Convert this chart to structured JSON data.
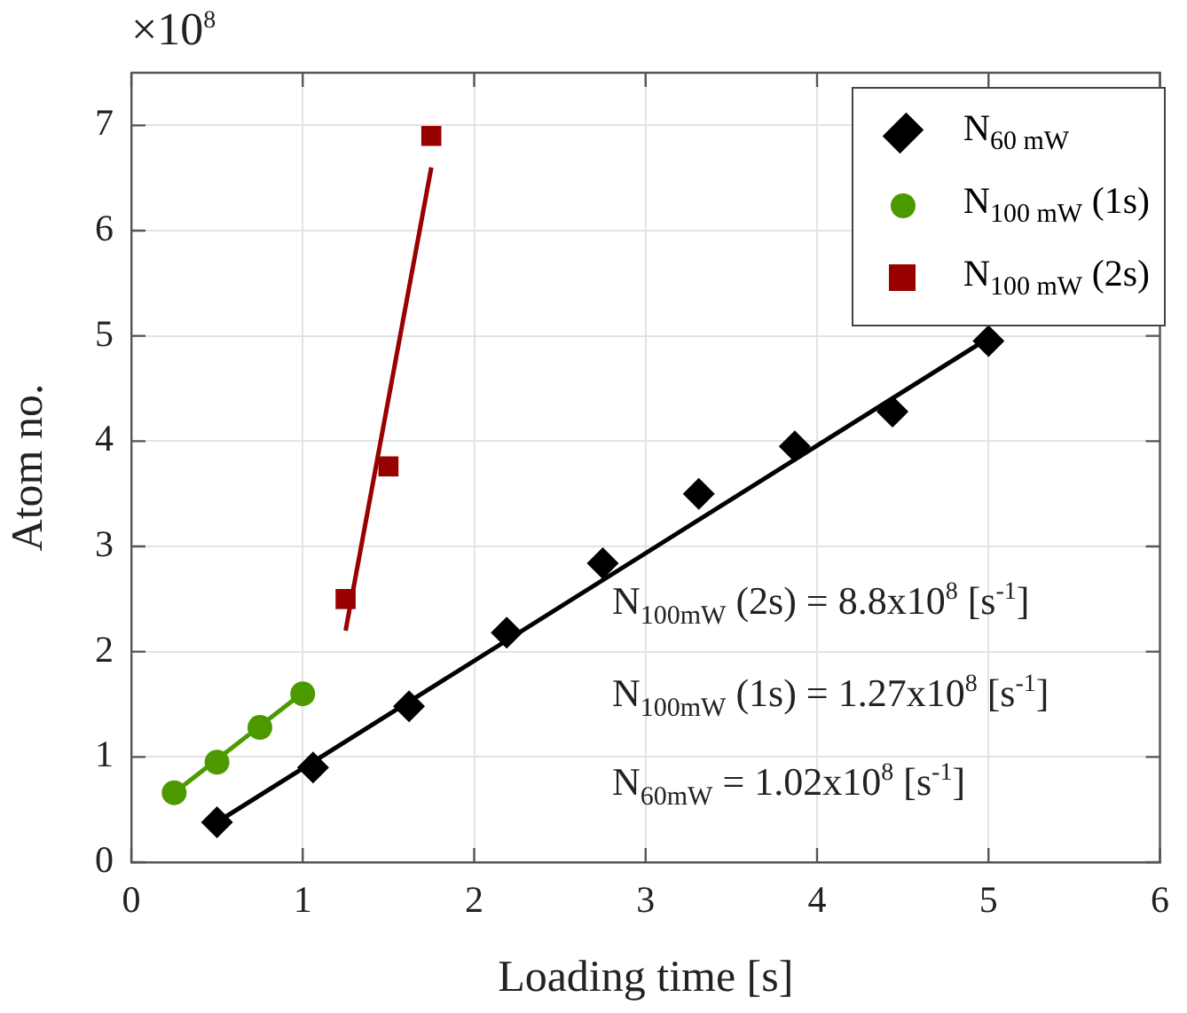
{
  "chart_data": {
    "type": "scatter",
    "xlabel": "Loading time [s]",
    "ylabel": "Atom no.",
    "xlim": [
      0,
      6
    ],
    "xticks": [
      0,
      1,
      2,
      3,
      4,
      5,
      6
    ],
    "ylim": [
      0,
      7.5
    ],
    "yticks": [
      0,
      1,
      2,
      3,
      4,
      5,
      6,
      7
    ],
    "grid": true,
    "legend": "top right",
    "series": [
      {
        "name": "N$_{60 mW}$",
        "marker": "diamond",
        "color": "#000000",
        "x": [
          0.5,
          1.06,
          1.62,
          2.19,
          2.75,
          3.31,
          3.87,
          4.44,
          5.0
        ],
        "values": [
          0.38,
          0.9,
          1.48,
          2.18,
          2.84,
          3.5,
          3.95,
          4.28,
          4.95
        ]
      },
      {
        "name": "N$_{100 mW}$ (1s)",
        "marker": "circle",
        "color": "#4d9a00",
        "x": [
          0.25,
          0.5,
          0.75,
          1.0
        ],
        "values": [
          0.66,
          0.95,
          1.28,
          1.6
        ]
      },
      {
        "name": "N$_{100 mW}$ (2s)",
        "marker": "square",
        "color": "#990000",
        "x": [
          1.25,
          1.5,
          1.75
        ],
        "values": [
          2.5,
          3.76,
          6.9
        ]
      },
      {
        "type": "line",
        "marker": "none",
        "color": "#000000",
        "x": [
          0.5,
          5.0
        ],
        "values": [
          0.38,
          4.98
        ]
      },
      {
        "type": "line",
        "marker": "none",
        "color": "#4d9a00",
        "x": [
          0.25,
          1.0
        ],
        "values": [
          0.66,
          1.61
        ]
      },
      {
        "type": "line",
        "marker": "none",
        "color": "#990000",
        "x": [
          1.25,
          1.75
        ],
        "values": [
          2.2,
          6.6
        ]
      }
    ],
    "annotations": [
      "×10$^{8}$",
      "N$_{100mW}$ (2s) = 8.8x10$^{8}$ [s$^{-1}$]",
      "N$_{100mW}$ (1s) = 1.27x10$^{8}$ [s$^{-1}$]",
      "N$_{60mW}$ = 1.02x10$^{8}$ [s$^{-1}$]"
    ]
  }
}
